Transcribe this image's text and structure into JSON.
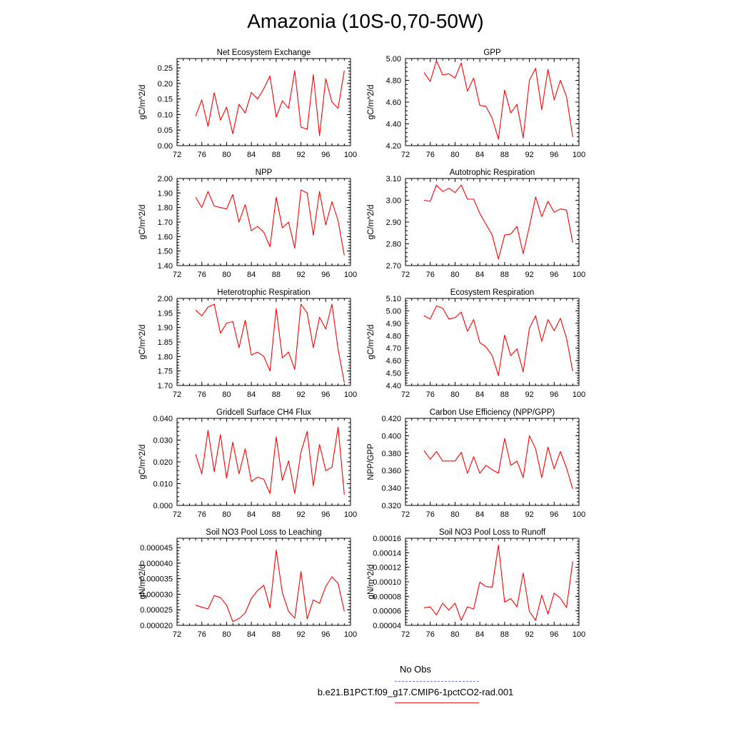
{
  "title": "Amazonia (10S-0,70-50W)",
  "legend": {
    "items": [
      {
        "label": "No Obs",
        "color": "#7777ee",
        "dash": true
      },
      {
        "label": "b.e21.B1PCT.f09_g17.CMIP6-1pctCO2-rad.001",
        "color": "#ee2222",
        "dash": false
      }
    ]
  },
  "chart_data": [
    {
      "type": "line",
      "title": "Net Ecosystem Exchange",
      "ylabel": "gC/m^2/d",
      "xlim": [
        72,
        100
      ],
      "ylim": [
        0,
        0.28
      ],
      "xticks": [
        "72",
        "76",
        "80",
        "84",
        "88",
        "92",
        "96",
        "100"
      ],
      "yticks": [
        "0.00",
        "0.05",
        "0.10",
        "0.15",
        "0.20",
        "0.25"
      ],
      "x": [
        75,
        76,
        77,
        78,
        79,
        80,
        81,
        82,
        83,
        84,
        85,
        86,
        87,
        88,
        89,
        90,
        91,
        92,
        93,
        94,
        95,
        96,
        97,
        98,
        99
      ],
      "series": [
        {
          "color": "#ff0000",
          "values": [
            0.095,
            0.147,
            0.062,
            0.17,
            0.082,
            0.124,
            0.038,
            0.133,
            0.105,
            0.171,
            0.15,
            0.183,
            0.224,
            0.092,
            0.144,
            0.12,
            0.241,
            0.06,
            0.052,
            0.228,
            0.032,
            0.215,
            0.14,
            0.12,
            0.241
          ]
        }
      ]
    },
    {
      "type": "line",
      "title": "GPP",
      "ylabel": "gC/m^2/d",
      "xlim": [
        72,
        100
      ],
      "ylim": [
        4.2,
        5.0
      ],
      "xticks": [
        "72",
        "76",
        "80",
        "84",
        "88",
        "92",
        "96",
        "100"
      ],
      "yticks": [
        "4.20",
        "4.40",
        "4.60",
        "4.80",
        "5.00"
      ],
      "x": [
        75,
        76,
        77,
        78,
        79,
        80,
        81,
        82,
        83,
        84,
        85,
        86,
        87,
        88,
        89,
        90,
        91,
        92,
        93,
        94,
        95,
        96,
        97,
        98,
        99
      ],
      "series": [
        {
          "color": "#ff0000",
          "values": [
            4.87,
            4.79,
            4.98,
            4.85,
            4.86,
            4.82,
            4.96,
            4.7,
            4.82,
            4.57,
            4.56,
            4.45,
            4.26,
            4.71,
            4.5,
            4.58,
            4.27,
            4.8,
            4.91,
            4.53,
            4.9,
            4.62,
            4.8,
            4.65,
            4.28
          ]
        }
      ]
    },
    {
      "type": "line",
      "title": "NPP",
      "ylabel": "gC/m^2/d",
      "xlim": [
        72,
        100
      ],
      "ylim": [
        1.4,
        2.0
      ],
      "xticks": [
        "72",
        "76",
        "80",
        "84",
        "88",
        "92",
        "96",
        "100"
      ],
      "yticks": [
        "1.40",
        "1.50",
        "1.60",
        "1.70",
        "1.80",
        "1.90",
        "2.00"
      ],
      "x": [
        75,
        76,
        77,
        78,
        79,
        80,
        81,
        82,
        83,
        84,
        85,
        86,
        87,
        88,
        89,
        90,
        91,
        92,
        93,
        94,
        95,
        96,
        97,
        98,
        99
      ],
      "series": [
        {
          "color": "#ff0000",
          "values": [
            1.87,
            1.8,
            1.91,
            1.81,
            1.8,
            1.79,
            1.89,
            1.7,
            1.82,
            1.64,
            1.67,
            1.63,
            1.53,
            1.87,
            1.66,
            1.7,
            1.52,
            1.92,
            1.9,
            1.61,
            1.91,
            1.68,
            1.84,
            1.71,
            1.47
          ]
        }
      ]
    },
    {
      "type": "line",
      "title": "Autotrophic Respiration",
      "ylabel": "gC/m^2/d",
      "xlim": [
        72,
        100
      ],
      "ylim": [
        2.7,
        3.1
      ],
      "xticks": [
        "72",
        "76",
        "80",
        "84",
        "88",
        "92",
        "96",
        "100"
      ],
      "yticks": [
        "2.70",
        "2.80",
        "2.90",
        "3.00",
        "3.10"
      ],
      "x": [
        75,
        76,
        77,
        78,
        79,
        80,
        81,
        82,
        83,
        84,
        85,
        86,
        87,
        88,
        89,
        90,
        91,
        92,
        93,
        94,
        95,
        96,
        97,
        98,
        99
      ],
      "series": [
        {
          "color": "#ff0000",
          "values": [
            3.0,
            2.995,
            3.07,
            3.04,
            3.055,
            3.035,
            3.07,
            3.005,
            3.005,
            2.94,
            2.89,
            2.84,
            2.73,
            2.84,
            2.845,
            2.88,
            2.755,
            2.88,
            3.015,
            2.925,
            2.995,
            2.945,
            2.96,
            2.955,
            2.805
          ]
        }
      ]
    },
    {
      "type": "line",
      "title": "Heterotrophic Respiration",
      "ylabel": "gC/m^2/d",
      "xlim": [
        72,
        100
      ],
      "ylim": [
        1.7,
        2.0
      ],
      "xticks": [
        "72",
        "76",
        "80",
        "84",
        "88",
        "92",
        "96",
        "100"
      ],
      "yticks": [
        "1.70",
        "1.75",
        "1.80",
        "1.85",
        "1.90",
        "1.95",
        "2.00"
      ],
      "x": [
        75,
        76,
        77,
        78,
        79,
        80,
        81,
        82,
        83,
        84,
        85,
        86,
        87,
        88,
        89,
        90,
        91,
        92,
        93,
        94,
        95,
        96,
        97,
        98,
        99
      ],
      "series": [
        {
          "color": "#ff0000",
          "values": [
            1.96,
            1.94,
            1.97,
            1.98,
            1.88,
            1.915,
            1.92,
            1.83,
            1.925,
            1.805,
            1.815,
            1.8,
            1.75,
            1.965,
            1.795,
            1.815,
            1.755,
            1.98,
            1.95,
            1.83,
            1.935,
            1.895,
            1.98,
            1.825,
            1.71
          ]
        }
      ]
    },
    {
      "type": "line",
      "title": "Ecosystem Respiration",
      "ylabel": "gC/m^2/d",
      "xlim": [
        72,
        100
      ],
      "ylim": [
        4.4,
        5.1
      ],
      "xticks": [
        "72",
        "76",
        "80",
        "84",
        "88",
        "92",
        "96",
        "100"
      ],
      "yticks": [
        "4.40",
        "4.50",
        "4.60",
        "4.70",
        "4.80",
        "4.90",
        "5.00",
        "5.10"
      ],
      "x": [
        75,
        76,
        77,
        78,
        79,
        80,
        81,
        82,
        83,
        84,
        85,
        86,
        87,
        88,
        89,
        90,
        91,
        92,
        93,
        94,
        95,
        96,
        97,
        98,
        99
      ],
      "series": [
        {
          "color": "#ff0000",
          "values": [
            4.96,
            4.935,
            5.04,
            5.02,
            4.935,
            4.945,
            4.99,
            4.835,
            4.93,
            4.745,
            4.71,
            4.64,
            4.48,
            4.805,
            4.64,
            4.695,
            4.51,
            4.86,
            4.96,
            4.755,
            4.93,
            4.84,
            4.94,
            4.78,
            4.515
          ]
        }
      ]
    },
    {
      "type": "line",
      "title": "Gridcell Surface CH4 Flux",
      "ylabel": "gC/m^2/d",
      "xlim": [
        72,
        100
      ],
      "ylim": [
        0,
        0.04
      ],
      "xticks": [
        "72",
        "76",
        "80",
        "84",
        "88",
        "92",
        "96",
        "100"
      ],
      "yticks": [
        "0.000",
        "0.010",
        "0.020",
        "0.030",
        "0.040"
      ],
      "x": [
        75,
        76,
        77,
        78,
        79,
        80,
        81,
        82,
        83,
        84,
        85,
        86,
        87,
        88,
        89,
        90,
        91,
        92,
        93,
        94,
        95,
        96,
        97,
        98,
        99
      ],
      "series": [
        {
          "color": "#ff0000",
          "values": [
            0.0235,
            0.0145,
            0.0345,
            0.0155,
            0.0325,
            0.0125,
            0.029,
            0.0145,
            0.026,
            0.011,
            0.013,
            0.012,
            0.0055,
            0.0315,
            0.0115,
            0.0205,
            0.0055,
            0.0245,
            0.034,
            0.009,
            0.028,
            0.016,
            0.0175,
            0.036,
            0.005
          ]
        }
      ]
    },
    {
      "type": "line",
      "title": "Carbon Use Efficiency (NPP/GPP)",
      "ylabel": "NPP/GPP",
      "xlim": [
        72,
        100
      ],
      "ylim": [
        0.32,
        0.42
      ],
      "xticks": [
        "72",
        "76",
        "80",
        "84",
        "88",
        "92",
        "96",
        "100"
      ],
      "yticks": [
        "0.320",
        "0.340",
        "0.360",
        "0.380",
        "0.400",
        "0.420"
      ],
      "x": [
        75,
        76,
        77,
        78,
        79,
        80,
        81,
        82,
        83,
        84,
        85,
        86,
        87,
        88,
        89,
        90,
        91,
        92,
        93,
        94,
        95,
        96,
        97,
        98,
        99
      ],
      "series": [
        {
          "color": "#ff0000",
          "values": [
            0.383,
            0.373,
            0.382,
            0.371,
            0.371,
            0.371,
            0.381,
            0.357,
            0.376,
            0.357,
            0.366,
            0.361,
            0.357,
            0.397,
            0.366,
            0.371,
            0.352,
            0.4,
            0.385,
            0.352,
            0.387,
            0.362,
            0.382,
            0.363,
            0.339
          ]
        }
      ]
    },
    {
      "type": "line",
      "title": "Soil NO3 Pool Loss to Leaching",
      "ylabel": "gN/m^2/d",
      "xlim": [
        72,
        100
      ],
      "ylim": [
        2e-05,
        4.8e-05
      ],
      "xticks": [
        "72",
        "76",
        "80",
        "84",
        "88",
        "92",
        "96",
        "100"
      ],
      "yticks": [
        "0.000020",
        "0.000025",
        "0.000030",
        "0.000035",
        "0.000040",
        "0.000045"
      ],
      "x": [
        75,
        76,
        77,
        78,
        79,
        80,
        81,
        82,
        83,
        84,
        85,
        86,
        87,
        88,
        89,
        90,
        91,
        92,
        93,
        94,
        95,
        96,
        97,
        98,
        99
      ],
      "series": [
        {
          "color": "#ff0000",
          "values": [
            2.65e-05,
            2.58e-05,
            2.53e-05,
            2.96e-05,
            2.89e-05,
            2.65e-05,
            2.12e-05,
            2.22e-05,
            2.4e-05,
            2.86e-05,
            3.12e-05,
            3.29e-05,
            2.56e-05,
            4.42e-05,
            3.05e-05,
            2.45e-05,
            2.23e-05,
            3.73e-05,
            2.21e-05,
            2.82e-05,
            2.71e-05,
            3.25e-05,
            3.56e-05,
            3.35e-05,
            2.45e-05
          ]
        }
      ]
    },
    {
      "type": "line",
      "title": "Soil NO3 Pool Loss to Runoff",
      "ylabel": "gN/m^2/d",
      "xlim": [
        72,
        100
      ],
      "ylim": [
        4e-05,
        0.00016
      ],
      "xticks": [
        "72",
        "76",
        "80",
        "84",
        "88",
        "92",
        "96",
        "100"
      ],
      "yticks": [
        "0.00004",
        "0.00006",
        "0.00008",
        "0.00010",
        "0.00012",
        "0.00014",
        "0.00016"
      ],
      "x": [
        75,
        76,
        77,
        78,
        79,
        80,
        81,
        82,
        83,
        84,
        85,
        86,
        87,
        88,
        89,
        90,
        91,
        92,
        93,
        94,
        95,
        96,
        97,
        98,
        99
      ],
      "series": [
        {
          "color": "#ff0000",
          "values": [
            6.4e-05,
            6.55e-05,
            5.45e-05,
            7.05e-05,
            6.1e-05,
            7.05e-05,
            4.7e-05,
            6.55e-05,
            6.25e-05,
            9.95e-05,
            9.35e-05,
            9.25e-05,
            0.0001505,
            7.2e-05,
            7.7e-05,
            6.55e-05,
            0.000112,
            5.9e-05,
            4.7e-05,
            8.15e-05,
            5.55e-05,
            8.45e-05,
            7.75e-05,
            6.45e-05,
            0.000128
          ]
        }
      ]
    }
  ]
}
